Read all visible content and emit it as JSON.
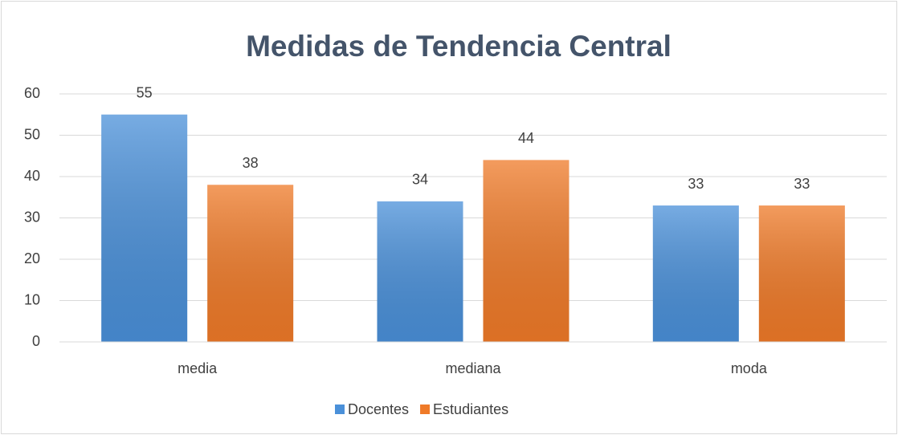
{
  "chart_data": {
    "type": "bar",
    "title": "Medidas de Tendencia Central",
    "categories": [
      "media",
      "mediana",
      "moda"
    ],
    "series": [
      {
        "name": "Docentes",
        "color": "#4a90d9",
        "values": [
          55,
          34,
          33
        ]
      },
      {
        "name": "Estudiantes",
        "color": "#ef7a28",
        "values": [
          38,
          44,
          33
        ]
      }
    ],
    "ylim": [
      0,
      60
    ],
    "yticks": [
      0,
      10,
      20,
      30,
      40,
      50,
      60
    ],
    "grid": true,
    "legend": "bottom"
  }
}
